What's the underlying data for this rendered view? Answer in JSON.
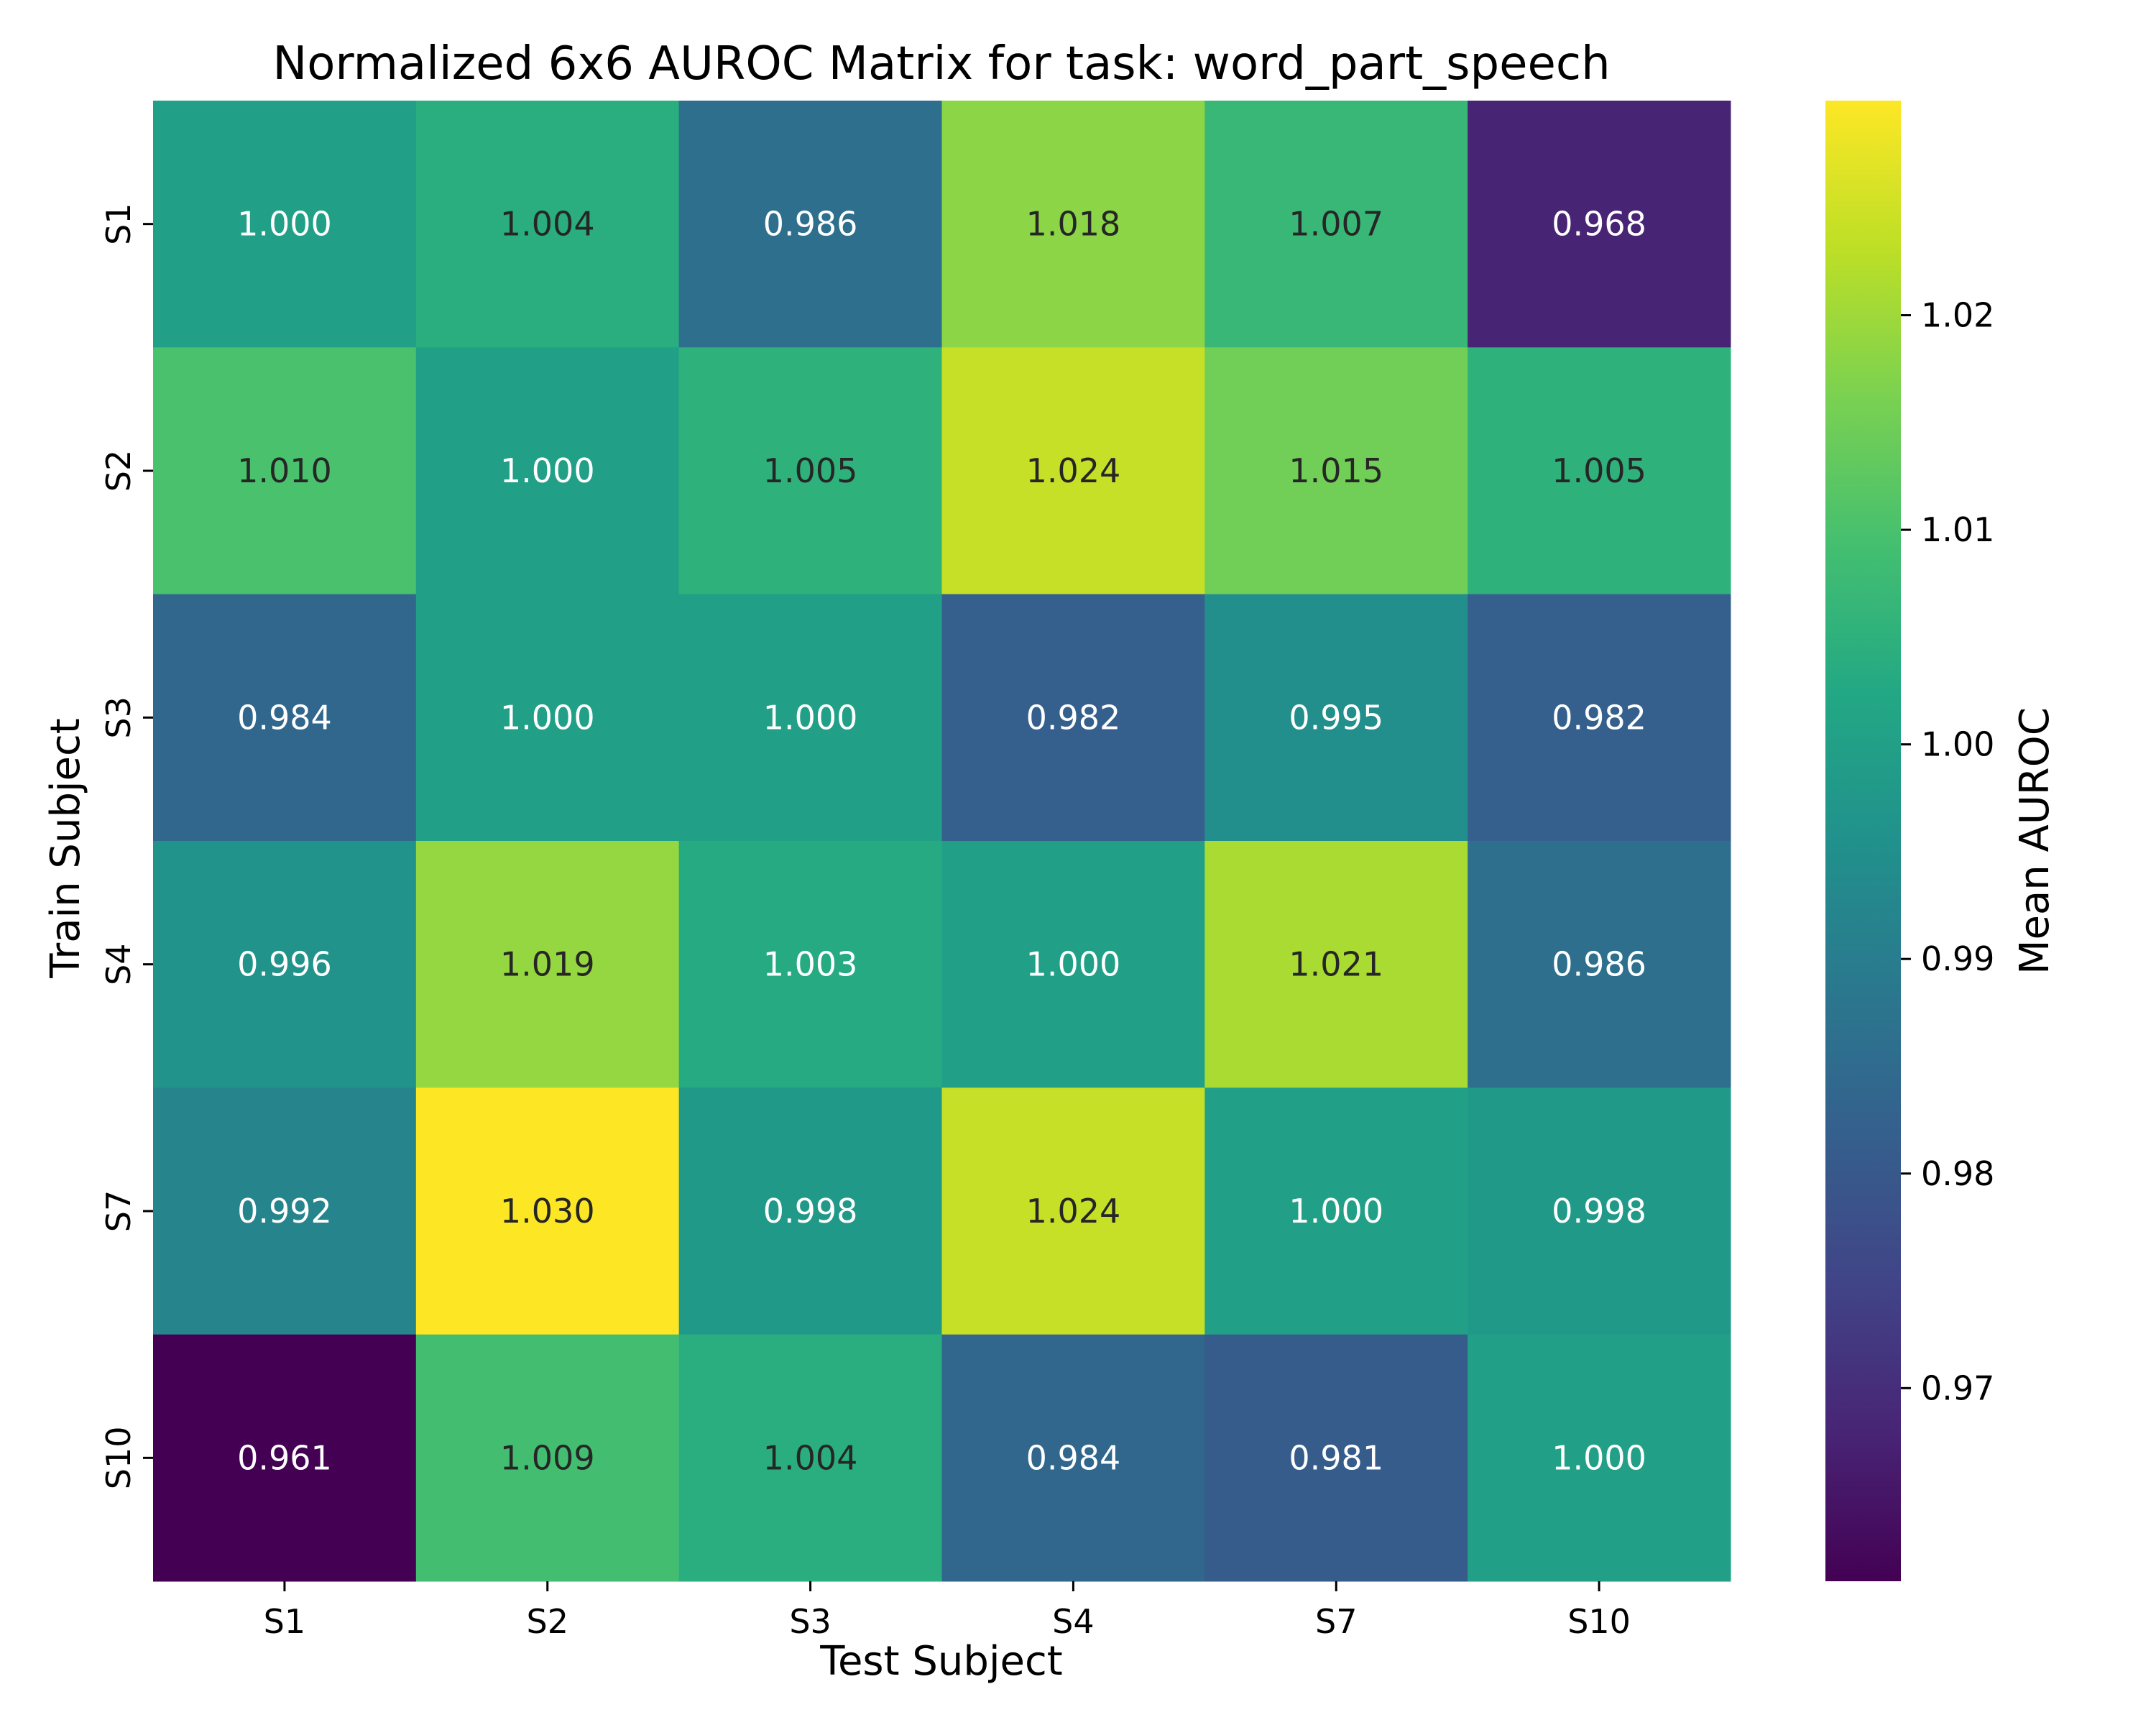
{
  "chart_data": {
    "type": "heatmap",
    "title": "Normalized 6x6 AUROC Matrix for task: word_part_speech",
    "xlabel": "Test Subject",
    "ylabel": "Train Subject",
    "x_categories": [
      "S1",
      "S2",
      "S3",
      "S4",
      "S7",
      "S10"
    ],
    "y_categories": [
      "S1",
      "S2",
      "S3",
      "S4",
      "S7",
      "S10"
    ],
    "values": [
      [
        1.0,
        1.004,
        0.986,
        1.018,
        1.007,
        0.968
      ],
      [
        1.01,
        1.0,
        1.005,
        1.024,
        1.015,
        1.005
      ],
      [
        0.984,
        1.0,
        1.0,
        0.982,
        0.995,
        0.982
      ],
      [
        0.996,
        1.019,
        1.003,
        1.0,
        1.021,
        0.986
      ],
      [
        0.992,
        1.03,
        0.998,
        1.024,
        1.0,
        0.998
      ],
      [
        0.961,
        1.009,
        1.004,
        0.984,
        0.981,
        1.0
      ]
    ],
    "value_format": "0.000",
    "colormap": "viridis",
    "colorbar": {
      "label": "Mean AUROC",
      "range": [
        0.961,
        1.03
      ],
      "ticks": [
        0.97,
        0.98,
        0.99,
        1.0,
        1.01,
        1.02
      ],
      "tick_labels": [
        "0.97",
        "0.98",
        "0.99",
        "1.00",
        "1.01",
        "1.02"
      ]
    },
    "text_color_dark": "#262626",
    "text_color_light": "#ffffff"
  }
}
